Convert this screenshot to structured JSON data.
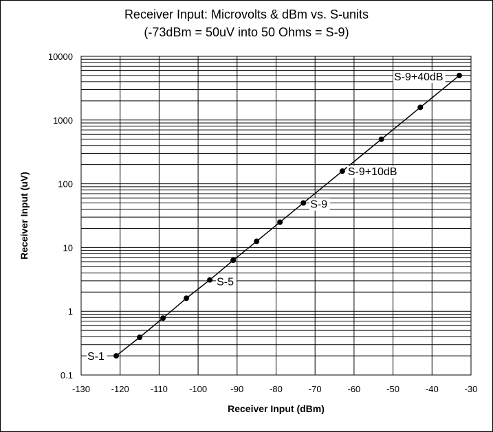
{
  "chart_data": {
    "type": "scatter",
    "title": "Receiver Input: Microvolts & dBm vs. S-units",
    "subtitle": "(-73dBm = 50uV into 50 Ohms = S-9)",
    "xlabel": "Receiver Input (dBm)",
    "ylabel": "Receiver Input (uV)",
    "xlim": [
      -130,
      -30
    ],
    "ylim": [
      0.1,
      10000
    ],
    "y_scale": "log",
    "grid": true,
    "x_ticks": [
      -130,
      -120,
      -110,
      -100,
      -90,
      -80,
      -70,
      -60,
      -50,
      -40,
      -30
    ],
    "y_ticks": [
      0.1,
      1,
      10,
      100,
      1000,
      10000
    ],
    "x_tick_labels": [
      "-130",
      "-120",
      "-110",
      "-100",
      "-90",
      "-80",
      "-70",
      "-60",
      "-50",
      "-40",
      "-30"
    ],
    "y_tick_labels": [
      "0.1",
      "1",
      "10",
      "100",
      "1000",
      "10000"
    ],
    "series": [
      {
        "x": [
          -121,
          -115,
          -109,
          -103,
          -97,
          -91,
          -85,
          -79,
          -73,
          -63,
          -53,
          -43,
          -33
        ],
        "y": [
          0.2,
          0.39,
          0.78,
          1.6,
          3.1,
          6.3,
          12.5,
          25,
          50,
          158,
          500,
          1581,
          5000
        ]
      }
    ],
    "annotations": [
      {
        "text": "S-1",
        "x": -121,
        "y": 0.2
      },
      {
        "text": "S-5",
        "x": -97,
        "y": 3.1
      },
      {
        "text": "S-9",
        "x": -73,
        "y": 50
      },
      {
        "text": "S-9+10dB",
        "x": -63,
        "y": 158
      },
      {
        "text": "S-9+40dB",
        "x": -33,
        "y": 5000
      }
    ]
  }
}
